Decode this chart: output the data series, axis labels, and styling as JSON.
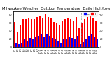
{
  "title": "Milwaukee Weather  Outdoor Temperature  Daily High/Low",
  "bar_width": 0.4,
  "background_color": "#ffffff",
  "highs": [
    62,
    38,
    55,
    70,
    68,
    72,
    68,
    70,
    75,
    78,
    72,
    80,
    75,
    72,
    62,
    60,
    55,
    65,
    68,
    72,
    70,
    65,
    75,
    48,
    60,
    70,
    75,
    78,
    72,
    65
  ],
  "lows": [
    8,
    6,
    9,
    18,
    14,
    22,
    20,
    25,
    28,
    30,
    24,
    32,
    28,
    22,
    18,
    14,
    10,
    18,
    20,
    25,
    22,
    18,
    28,
    6,
    12,
    20,
    28,
    30,
    24,
    18
  ],
  "labels": [
    "1/1",
    "1/2",
    "1/3",
    "1/4",
    "1/5",
    "1/6",
    "1/7",
    "1/8",
    "1/9",
    "1/10",
    "1/11",
    "1/12",
    "1/13",
    "1/14",
    "1/15",
    "1/16",
    "1/17",
    "1/18",
    "1/19",
    "1/20",
    "1/21",
    "1/22",
    "1/23",
    "1/24",
    "1/25",
    "1/26",
    "1/27",
    "1/28",
    "1/29",
    "1/30"
  ],
  "vline_pos": 23.5,
  "high_color": "#ff0000",
  "low_color": "#0000ff",
  "legend_high": "Hi",
  "legend_low": "Lo",
  "ylim": [
    0,
    90
  ],
  "yticks": [
    0,
    20,
    40,
    60,
    80
  ],
  "title_fontsize": 3.8,
  "tick_fontsize": 2.5,
  "legend_fontsize": 3.0
}
